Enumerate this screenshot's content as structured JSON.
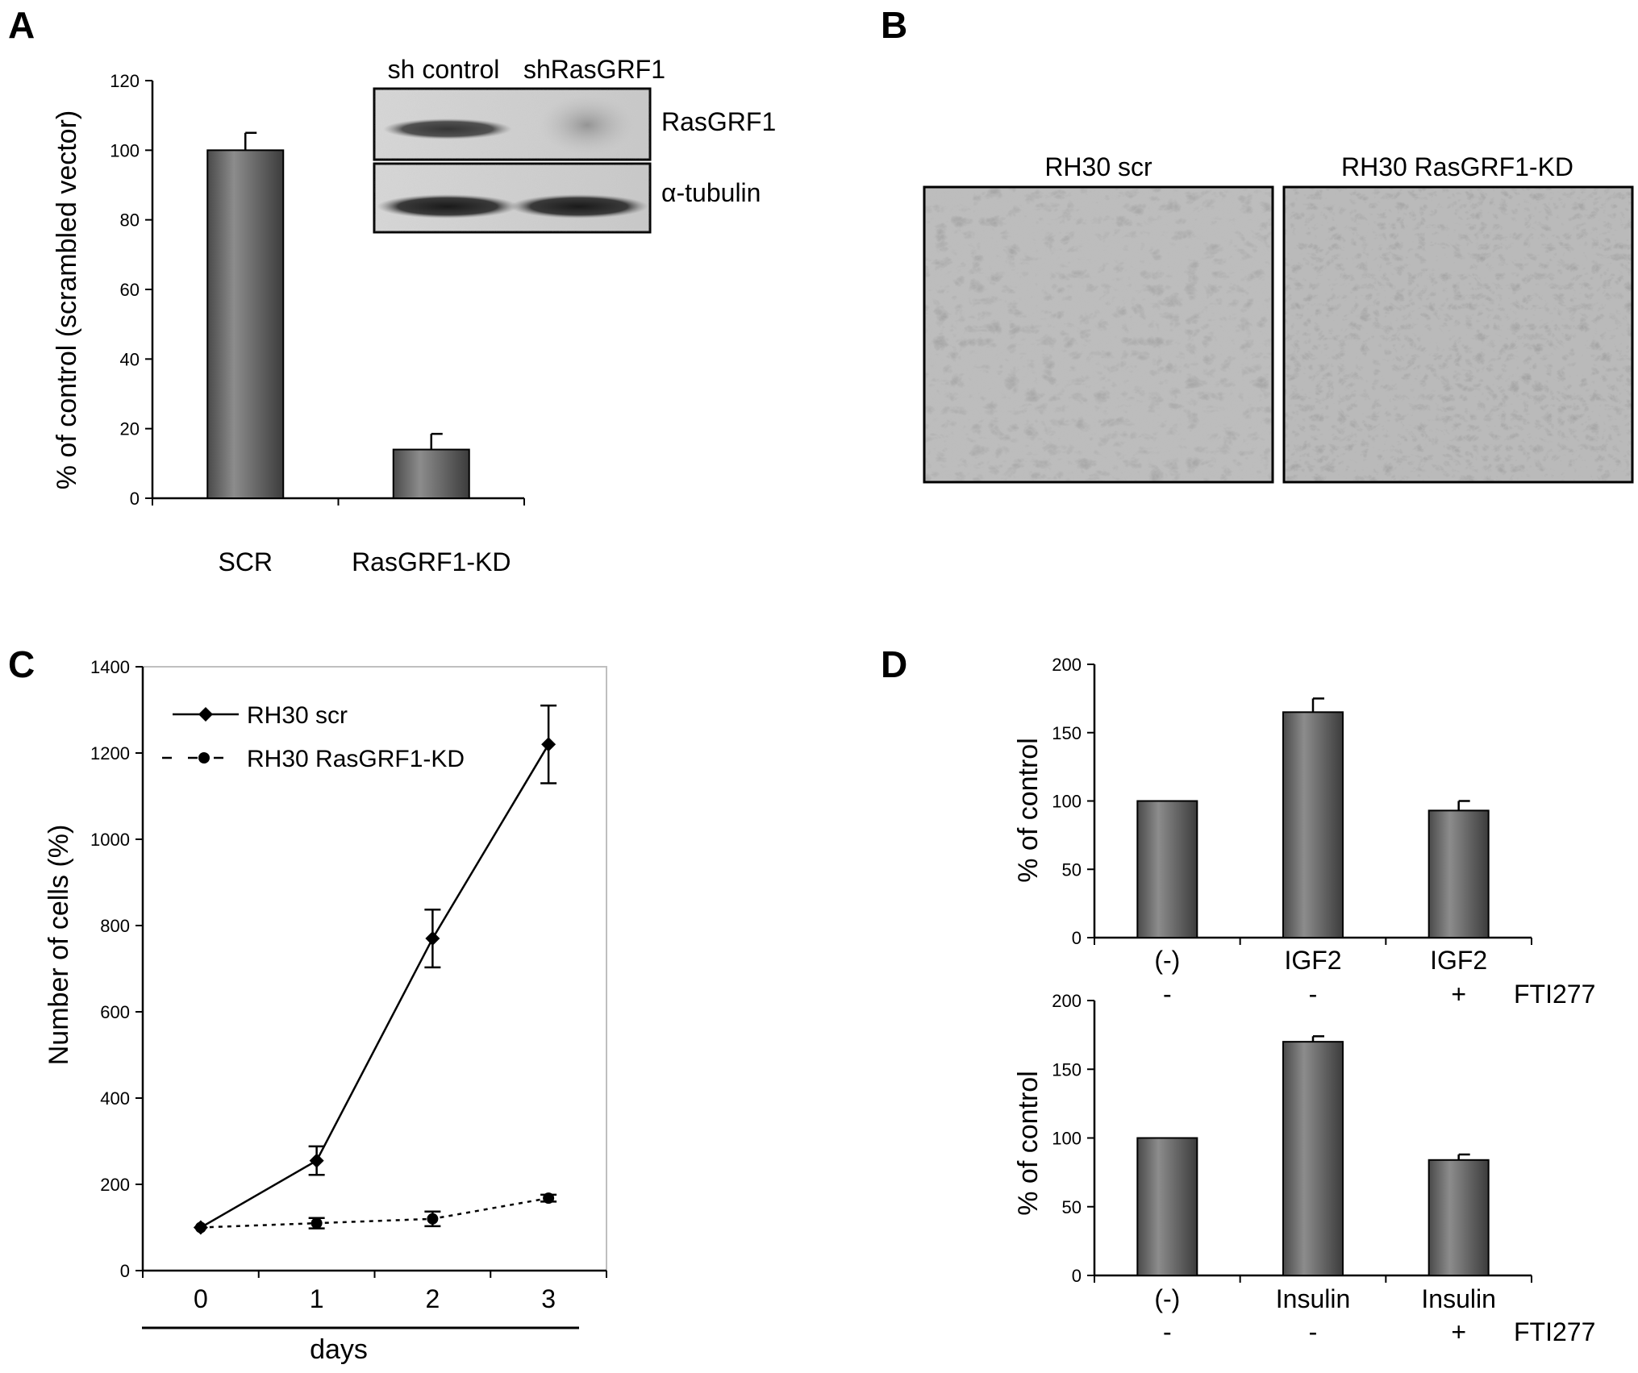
{
  "panel_letters": [
    "A",
    "B",
    "C",
    "D"
  ],
  "colors": {
    "bar_fill": "#6e6e6e",
    "bar_dark": "#3a3a3a",
    "axis": "#000000",
    "frame": "#bfbfbf"
  },
  "panel_b": {
    "captions": [
      "RH30 scr",
      "RH30 RasGRF1-KD"
    ]
  },
  "chart_data": [
    {
      "id": "A",
      "type": "bar",
      "categories": [
        "SCR",
        "RasGRF1-KD"
      ],
      "values": [
        100,
        14
      ],
      "errors": [
        5,
        4.5
      ],
      "ylabel": "% of control (scrambled vector)",
      "ylim": [
        0,
        120
      ],
      "yticks": [
        "0",
        "20",
        "40",
        "60",
        "80",
        "100",
        "120"
      ],
      "ytick_values": [
        0,
        20,
        40,
        60,
        80,
        100,
        120
      ],
      "grid": false,
      "inset_blot": {
        "lanes": [
          "sh control",
          "shRasGRF1"
        ],
        "bands": [
          "RasGRF1",
          "α-tubulin"
        ]
      }
    },
    {
      "id": "C",
      "type": "line",
      "x": [
        0,
        1,
        2,
        3
      ],
      "xticks": [
        "0",
        "1",
        "2",
        "3"
      ],
      "xlabel": "days",
      "ylabel": "Number of cells (%)",
      "ylim": [
        0,
        1400
      ],
      "yticks": [
        "0",
        "200",
        "400",
        "600",
        "800",
        "1000",
        "1200",
        "1400"
      ],
      "ytick_values": [
        0,
        200,
        400,
        600,
        800,
        1000,
        1200,
        1400
      ],
      "legend_position": "top-left",
      "series": [
        {
          "name": "RH30 scr",
          "values": [
            100,
            255,
            770,
            1220
          ],
          "errors": [
            0,
            33,
            67,
            90
          ],
          "style": "solid",
          "marker": "diamond"
        },
        {
          "name": "RH30 RasGRF1-KD",
          "values": [
            100,
            110,
            120,
            168
          ],
          "errors": [
            0,
            12,
            17,
            8
          ],
          "style": "dashed",
          "marker": "circle"
        }
      ]
    },
    {
      "id": "D-top",
      "type": "bar",
      "categories": [
        "(-)",
        "IGF2",
        "IGF2"
      ],
      "values": [
        100,
        165,
        93
      ],
      "errors": [
        0,
        10,
        7
      ],
      "ylabel": "% of control",
      "ylim": [
        0,
        200
      ],
      "yticks": [
        "0",
        "50",
        "100",
        "150",
        "200"
      ],
      "ytick_values": [
        0,
        50,
        100,
        150,
        200
      ],
      "treatment_row": [
        "-",
        "-",
        "+"
      ],
      "treatment_label": "FTI277"
    },
    {
      "id": "D-bottom",
      "type": "bar",
      "categories": [
        "(-)",
        "Insulin",
        "Insulin"
      ],
      "values": [
        100,
        170,
        84
      ],
      "errors": [
        0,
        4,
        4
      ],
      "ylabel": "% of control",
      "ylim": [
        0,
        200
      ],
      "yticks": [
        "0",
        "50",
        "100",
        "150",
        "200"
      ],
      "ytick_values": [
        0,
        50,
        100,
        150,
        200
      ],
      "treatment_row": [
        "-",
        "-",
        "+"
      ],
      "treatment_label": "FTI277"
    }
  ]
}
